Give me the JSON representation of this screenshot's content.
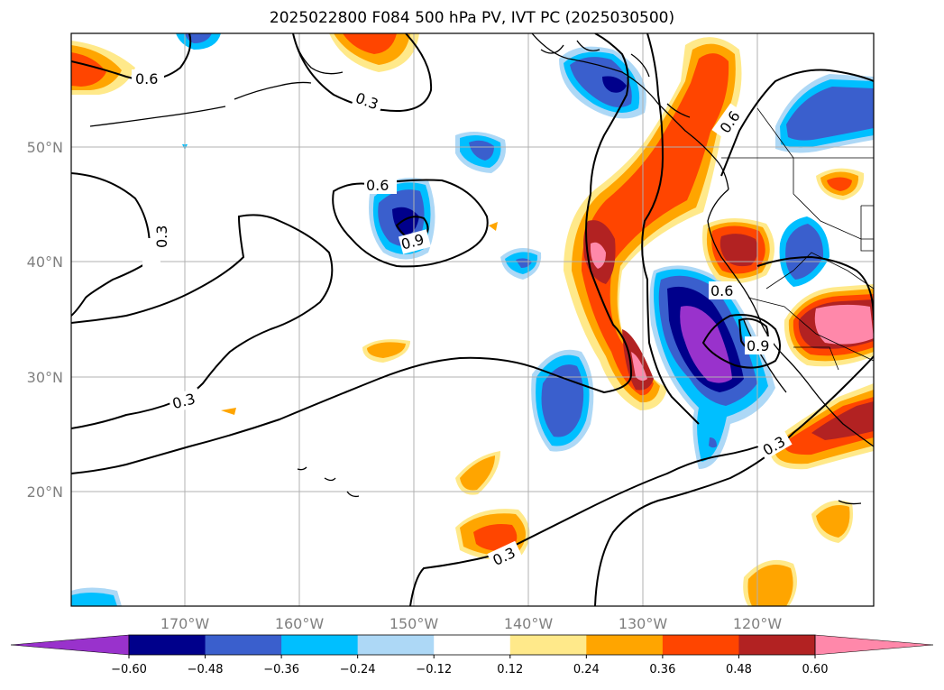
{
  "title": "2025022800 F084 500 hPa PV, IVT PC (2025030500)",
  "lat_labels": [
    "50°N",
    "40°N",
    "30°N",
    "20°N"
  ],
  "lon_labels": [
    "170°W",
    "160°W",
    "150°W",
    "140°W",
    "130°W",
    "120°W"
  ],
  "contour_labels": [
    "0.6",
    "0.3",
    "0.6",
    "0.9",
    "0.3",
    "0.6",
    "0.6",
    "0.9",
    "0.3",
    "0.3",
    "0.3"
  ],
  "colorbar": {
    "ticks": [
      "−0.60",
      "−0.48",
      "−0.36",
      "−0.24",
      "−0.12",
      "0.12",
      "0.24",
      "0.36",
      "0.48",
      "0.60"
    ],
    "colors": [
      "#9932cc",
      "#00008b",
      "#3a5fcd",
      "#00bfff",
      "#add8f6",
      "#ffffff",
      "#ffe98a",
      "#ffa500",
      "#ff4500",
      "#b22222",
      "#ff88aa"
    ]
  },
  "colors": {
    "land_outline": "#000000",
    "grid": "#b0b0b0",
    "contour": "#000000"
  }
}
